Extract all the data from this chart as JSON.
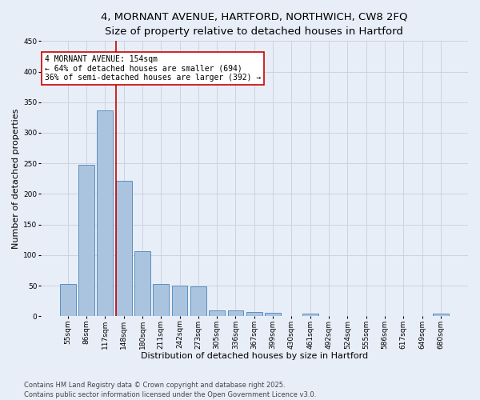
{
  "title_line1": "4, MORNANT AVENUE, HARTFORD, NORTHWICH, CW8 2FQ",
  "title_line2": "Size of property relative to detached houses in Hartford",
  "xlabel": "Distribution of detached houses by size in Hartford",
  "ylabel": "Number of detached properties",
  "categories": [
    "55sqm",
    "86sqm",
    "117sqm",
    "148sqm",
    "180sqm",
    "211sqm",
    "242sqm",
    "273sqm",
    "305sqm",
    "336sqm",
    "367sqm",
    "399sqm",
    "430sqm",
    "461sqm",
    "492sqm",
    "524sqm",
    "555sqm",
    "586sqm",
    "617sqm",
    "649sqm",
    "680sqm"
  ],
  "values": [
    53,
    248,
    337,
    222,
    107,
    53,
    50,
    49,
    10,
    9,
    7,
    6,
    0,
    4,
    0,
    0,
    0,
    0,
    0,
    0,
    4
  ],
  "bar_color": "#aac4e0",
  "bar_edge_color": "#5a8fbf",
  "background_color": "#e8eef8",
  "grid_color": "#c8d0dc",
  "annotation_text": "4 MORNANT AVENUE: 154sqm\n← 64% of detached houses are smaller (694)\n36% of semi-detached houses are larger (392) →",
  "vline_index": 3,
  "vline_color": "#cc0000",
  "annotation_box_color": "#ffffff",
  "annotation_box_edge": "#cc0000",
  "ylim": [
    0,
    450
  ],
  "yticks": [
    0,
    50,
    100,
    150,
    200,
    250,
    300,
    350,
    400,
    450
  ],
  "footer_line1": "Contains HM Land Registry data © Crown copyright and database right 2025.",
  "footer_line2": "Contains public sector information licensed under the Open Government Licence v3.0.",
  "title_fontsize": 9.5,
  "axis_label_fontsize": 8,
  "tick_fontsize": 6.5,
  "annotation_fontsize": 7,
  "footer_fontsize": 6
}
